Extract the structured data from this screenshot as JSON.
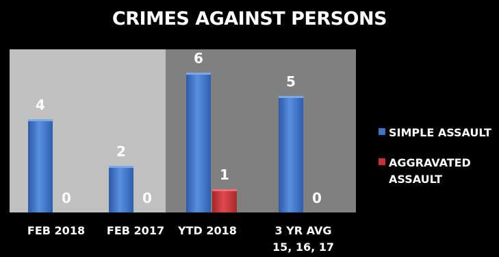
{
  "chart_data": {
    "type": "bar",
    "title": "CRIMES AGAINST PERSONS",
    "categories": [
      "FEB 2018",
      "FEB 2017",
      "YTD 2018",
      "3 YR AVG\n15, 16, 17"
    ],
    "series": [
      {
        "name": "SIMPLE ASSAULT",
        "values": [
          4,
          2,
          6,
          5
        ],
        "color": "#3f73c4"
      },
      {
        "name": "AGGRAVATED ASSAULT",
        "values": [
          0,
          0,
          1,
          0
        ],
        "color": "#c83235"
      }
    ],
    "ylim": [
      0,
      7
    ],
    "grid": false,
    "legend": "right",
    "panel_colors": [
      "#c0c0c0",
      "#808080"
    ]
  }
}
